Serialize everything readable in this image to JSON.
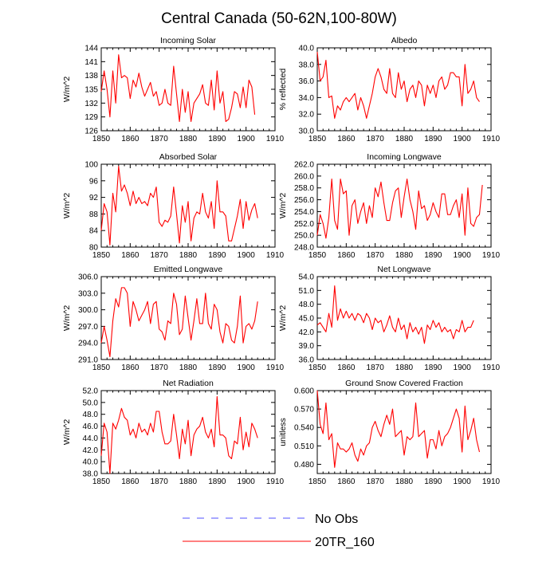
{
  "title": "Central Canada (50-62N,100-80W)",
  "legend": {
    "items": [
      {
        "label": "No Obs",
        "color": "#5050ff",
        "dash": true
      },
      {
        "label": "20TR_160",
        "color": "#ff0000",
        "dash": false
      }
    ]
  },
  "chart_data": [
    {
      "type": "line",
      "title": "Incoming Solar",
      "ylabel": "W/m^2",
      "xlim": [
        1850,
        1910
      ],
      "ylim": [
        126,
        144
      ],
      "xticks": [
        1850,
        1860,
        1870,
        1880,
        1890,
        1900,
        1910
      ],
      "yticks": [
        "126",
        "129",
        "132",
        "135",
        "138",
        "141",
        "144"
      ],
      "yticks_values": [
        126,
        129,
        132,
        135,
        138,
        141,
        144
      ],
      "series": [
        {
          "name": "20TR_160",
          "color": "#ff0000",
          "x_start": 1850,
          "values": [
            134.5,
            139.0,
            135.0,
            129.0,
            139.0,
            132.0,
            142.5,
            137.5,
            138.0,
            137.5,
            133.0,
            137.0,
            135.5,
            138.5,
            135.5,
            133.5,
            135.0,
            136.5,
            133.5,
            134.5,
            131.5,
            132.0,
            135.0,
            132.0,
            131.5,
            140.0,
            134.0,
            128.0,
            135.0,
            130.0,
            134.5,
            128.0,
            132.0,
            133.0,
            134.0,
            136.0,
            132.0,
            131.5,
            137.0,
            130.5,
            139.0,
            132.0,
            134.5,
            128.0,
            128.5,
            131.0,
            134.5,
            134.0,
            131.0,
            135.5,
            131.0,
            137.0,
            135.5,
            129.5
          ]
        }
      ]
    },
    {
      "type": "line",
      "title": "Albedo",
      "ylabel": "% reflected",
      "xlim": [
        1850,
        1910
      ],
      "ylim": [
        30,
        40
      ],
      "xticks": [
        1850,
        1860,
        1870,
        1880,
        1890,
        1900,
        1910
      ],
      "yticks": [
        "30.0",
        "32.0",
        "34.0",
        "36.0",
        "38.0",
        "40.0"
      ],
      "yticks_values": [
        30,
        32,
        34,
        36,
        38,
        40
      ],
      "series": [
        {
          "name": "20TR_160",
          "color": "#ff0000",
          "x_start": 1850,
          "values": [
            39.5,
            36.0,
            36.5,
            38.5,
            34.0,
            34.2,
            31.5,
            33.0,
            32.5,
            33.5,
            34.0,
            33.5,
            34.0,
            34.5,
            32.5,
            34.0,
            33.0,
            31.5,
            33.0,
            34.5,
            36.5,
            37.5,
            36.5,
            35.0,
            34.5,
            37.5,
            34.5,
            34.0,
            37.0,
            35.0,
            36.0,
            33.5,
            35.0,
            35.5,
            34.0,
            36.0,
            35.5,
            33.0,
            35.5,
            34.5,
            35.5,
            34.0,
            36.0,
            36.5,
            35.0,
            35.5,
            37.0,
            37.0,
            36.5,
            36.5,
            33.0,
            38.0,
            34.5,
            35.0,
            36.0,
            34.0,
            33.5
          ]
        }
      ]
    },
    {
      "type": "line",
      "title": "Absorbed Solar",
      "ylabel": "W/m^2",
      "xlim": [
        1850,
        1910
      ],
      "ylim": [
        80,
        100
      ],
      "xticks": [
        1850,
        1860,
        1870,
        1880,
        1890,
        1900,
        1910
      ],
      "yticks": [
        "80",
        "84",
        "88",
        "92",
        "96",
        "100"
      ],
      "yticks_values": [
        80,
        84,
        88,
        92,
        96,
        100
      ],
      "series": [
        {
          "name": "20TR_160",
          "color": "#ff0000",
          "x_start": 1850,
          "values": [
            84.0,
            90.5,
            88.5,
            80.5,
            93.0,
            88.5,
            99.5,
            93.5,
            95.0,
            93.0,
            90.0,
            93.5,
            90.5,
            92.0,
            90.5,
            91.0,
            90.0,
            93.0,
            92.0,
            94.5,
            86.0,
            85.0,
            86.5,
            86.0,
            87.5,
            94.5,
            88.0,
            81.0,
            90.0,
            86.0,
            91.0,
            81.5,
            87.0,
            88.5,
            88.0,
            93.0,
            88.5,
            87.0,
            91.0,
            84.5,
            96.0,
            88.5,
            88.5,
            87.5,
            81.5,
            81.5,
            84.5,
            87.5,
            91.5,
            84.5,
            91.0,
            86.5,
            89.0,
            90.5,
            87.0
          ]
        }
      ]
    },
    {
      "type": "line",
      "title": "Incoming Longwave",
      "ylabel": "W/m^2",
      "xlim": [
        1850,
        1910
      ],
      "ylim": [
        248,
        262
      ],
      "xticks": [
        1850,
        1860,
        1870,
        1880,
        1890,
        1900,
        1910
      ],
      "yticks": [
        "248.0",
        "250.0",
        "252.0",
        "254.0",
        "256.0",
        "258.0",
        "260.0",
        "262.0"
      ],
      "yticks_values": [
        248,
        250,
        252,
        254,
        256,
        258,
        260,
        262
      ],
      "series": [
        {
          "name": "20TR_160",
          "color": "#ff0000",
          "x_start": 1850,
          "values": [
            250.0,
            253.5,
            252.0,
            249.5,
            253.0,
            259.5,
            252.5,
            251.0,
            259.5,
            257.0,
            257.5,
            250.0,
            255.0,
            256.0,
            252.0,
            254.0,
            255.5,
            252.0,
            255.0,
            253.0,
            258.0,
            256.5,
            259.0,
            255.5,
            252.5,
            252.5,
            255.5,
            257.5,
            258.0,
            253.0,
            256.5,
            259.5,
            256.0,
            254.0,
            251.0,
            257.5,
            254.5,
            255.0,
            252.5,
            253.5,
            255.5,
            254.0,
            253.0,
            257.0,
            257.0,
            253.5,
            253.5,
            255.0,
            256.0,
            253.0,
            257.0,
            250.0,
            258.0,
            252.0,
            251.5,
            253.0,
            253.5,
            258.5
          ]
        }
      ]
    },
    {
      "type": "line",
      "title": "Emitted Longwave",
      "ylabel": "W/m^2",
      "xlim": [
        1850,
        1910
      ],
      "ylim": [
        291,
        306
      ],
      "xticks": [
        1850,
        1860,
        1870,
        1880,
        1890,
        1900,
        1910
      ],
      "yticks": [
        "291.0",
        "294.0",
        "297.0",
        "300.0",
        "303.0",
        "306.0"
      ],
      "yticks_values": [
        291,
        294,
        297,
        300,
        303,
        306
      ],
      "series": [
        {
          "name": "20TR_160",
          "color": "#ff0000",
          "x_start": 1850,
          "values": [
            294.0,
            297.0,
            294.5,
            291.5,
            298.0,
            302.0,
            300.5,
            304.0,
            304.0,
            303.0,
            297.0,
            301.5,
            300.0,
            298.0,
            299.0,
            300.0,
            301.5,
            297.5,
            301.0,
            301.5,
            296.5,
            296.0,
            294.5,
            298.0,
            297.5,
            303.0,
            301.0,
            295.5,
            296.5,
            302.5,
            298.5,
            294.5,
            298.0,
            302.0,
            297.5,
            297.5,
            303.0,
            297.5,
            296.5,
            301.0,
            300.0,
            296.0,
            294.0,
            297.5,
            297.0,
            294.5,
            294.0,
            297.0,
            302.5,
            294.0,
            297.0,
            297.5,
            296.5,
            298.0,
            301.5
          ]
        }
      ]
    },
    {
      "type": "line",
      "title": "Net Longwave",
      "ylabel": "W/m^2",
      "xlim": [
        1850,
        1910
      ],
      "ylim": [
        36,
        54
      ],
      "xticks": [
        1850,
        1860,
        1870,
        1880,
        1890,
        1900,
        1910
      ],
      "yticks": [
        "36.0",
        "39.0",
        "42.0",
        "45.0",
        "48.0",
        "51.0",
        "54.0"
      ],
      "yticks_values": [
        36,
        39,
        42,
        45,
        48,
        51,
        54
      ],
      "series": [
        {
          "name": "20TR_160",
          "color": "#ff0000",
          "x_start": 1850,
          "values": [
            43.5,
            44.0,
            43.0,
            42.0,
            46.0,
            43.0,
            52.0,
            44.5,
            47.0,
            45.0,
            46.5,
            45.0,
            46.0,
            44.5,
            46.0,
            45.5,
            44.0,
            46.0,
            45.0,
            42.5,
            45.0,
            44.0,
            44.5,
            42.0,
            43.5,
            45.5,
            43.0,
            42.0,
            45.0,
            42.5,
            43.5,
            40.5,
            44.0,
            42.0,
            43.0,
            41.5,
            43.0,
            39.5,
            43.5,
            42.5,
            44.5,
            43.0,
            44.0,
            42.0,
            43.0,
            42.0,
            42.5,
            40.5,
            42.5,
            42.0,
            44.5,
            42.0,
            43.0,
            43.0,
            44.5
          ]
        }
      ]
    },
    {
      "type": "line",
      "title": "Net Radiation",
      "ylabel": "W/m^2",
      "xlim": [
        1850,
        1910
      ],
      "ylim": [
        38,
        52
      ],
      "xticks": [
        1850,
        1860,
        1870,
        1880,
        1890,
        1900,
        1910
      ],
      "yticks": [
        "38.0",
        "40.0",
        "42.0",
        "44.0",
        "46.0",
        "48.0",
        "50.0",
        "52.0"
      ],
      "yticks_values": [
        38,
        40,
        42,
        44,
        46,
        48,
        50,
        52
      ],
      "series": [
        {
          "name": "20TR_160",
          "color": "#ff0000",
          "x_start": 1850,
          "values": [
            41.0,
            46.5,
            45.0,
            38.0,
            46.5,
            45.5,
            47.0,
            49.0,
            47.5,
            47.0,
            44.5,
            45.5,
            44.0,
            46.5,
            45.0,
            45.5,
            44.5,
            46.5,
            45.0,
            48.5,
            48.5,
            45.0,
            43.0,
            43.0,
            43.5,
            48.0,
            44.5,
            40.5,
            45.5,
            43.0,
            47.0,
            41.0,
            44.5,
            45.5,
            46.0,
            47.5,
            45.0,
            44.0,
            45.5,
            42.5,
            51.0,
            44.5,
            44.5,
            44.0,
            41.0,
            40.5,
            43.5,
            43.0,
            47.5,
            42.0,
            45.0,
            42.5,
            46.5,
            45.5,
            44.0
          ]
        }
      ]
    },
    {
      "type": "line",
      "title": "Ground Snow Covered Fraction",
      "ylabel": "unitless",
      "xlim": [
        1850,
        1910
      ],
      "ylim": [
        0.465,
        0.6
      ],
      "xticks": [
        1850,
        1860,
        1870,
        1880,
        1890,
        1900,
        1910
      ],
      "yticks": [
        "0.480",
        "0.510",
        "0.540",
        "0.570",
        "0.600"
      ],
      "yticks_values": [
        0.48,
        0.51,
        0.54,
        0.57,
        0.6
      ],
      "series": [
        {
          "name": "20TR_160",
          "color": "#ff0000",
          "x_start": 1850,
          "values": [
            0.6,
            0.545,
            0.53,
            0.58,
            0.52,
            0.53,
            0.475,
            0.515,
            0.505,
            0.505,
            0.5,
            0.505,
            0.515,
            0.495,
            0.485,
            0.505,
            0.495,
            0.51,
            0.515,
            0.54,
            0.55,
            0.535,
            0.525,
            0.545,
            0.56,
            0.545,
            0.57,
            0.525,
            0.53,
            0.535,
            0.495,
            0.525,
            0.52,
            0.525,
            0.58,
            0.525,
            0.53,
            0.535,
            0.49,
            0.52,
            0.52,
            0.505,
            0.535,
            0.51,
            0.525,
            0.53,
            0.54,
            0.555,
            0.57,
            0.555,
            0.5,
            0.575,
            0.52,
            0.535,
            0.555,
            0.52,
            0.5
          ]
        }
      ]
    }
  ]
}
